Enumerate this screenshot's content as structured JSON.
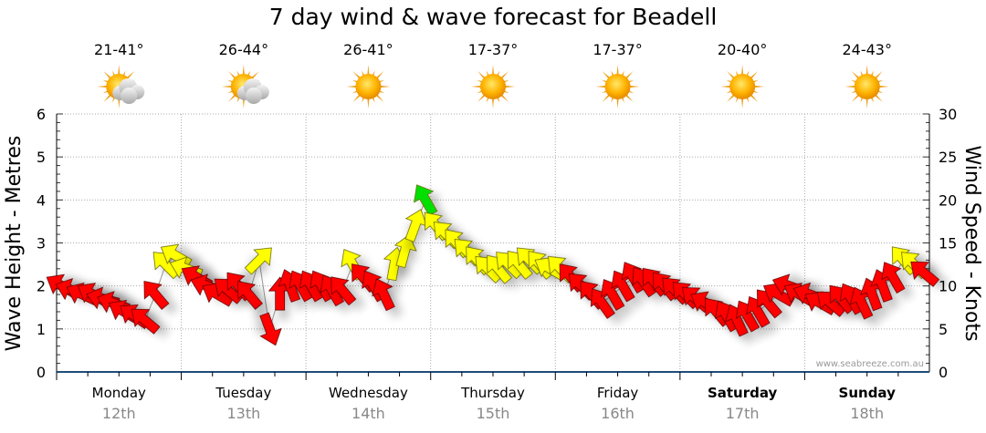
{
  "chart_data": {
    "type": "scatter",
    "title": "7 day wind & wave forecast for Beadell",
    "ylabel_left": "Wave Height - Metres",
    "ylabel_right": "Wind Speed - Knots",
    "ylim_left": [
      0,
      6
    ],
    "ylim_right": [
      0,
      30
    ],
    "yticks_left": [
      "0",
      "1",
      "2",
      "3",
      "4",
      "5",
      "6"
    ],
    "yticks_right": [
      "0",
      "5",
      "10",
      "15",
      "20",
      "25",
      "30"
    ],
    "grid": true,
    "watermark": "www.seabreeze.com.au",
    "days": [
      {
        "name": "Monday",
        "date": "12th",
        "bold": false,
        "temp": "21-41°",
        "icon": "partly-cloudy"
      },
      {
        "name": "Tuesday",
        "date": "13th",
        "bold": false,
        "temp": "26-44°",
        "icon": "partly-cloudy"
      },
      {
        "name": "Wednesday",
        "date": "14th",
        "bold": false,
        "temp": "26-41°",
        "icon": "sunny"
      },
      {
        "name": "Thursday",
        "date": "15th",
        "bold": false,
        "temp": "17-37°",
        "icon": "sunny"
      },
      {
        "name": "Friday",
        "date": "16th",
        "bold": false,
        "temp": "17-37°",
        "icon": "sunny"
      },
      {
        "name": "Saturday",
        "date": "17th",
        "bold": true,
        "temp": "20-40°",
        "icon": "sunny"
      },
      {
        "name": "Sunday",
        "date": "18th",
        "bold": true,
        "temp": "24-43°",
        "icon": "sunny"
      }
    ],
    "wind_interval_hours": 2,
    "wind_speed_knots": [
      10,
      9.5,
      9,
      9,
      8.5,
      8,
      7,
      6.5,
      6,
      9,
      12.5,
      13.5,
      12,
      11,
      10,
      9,
      9.5,
      10,
      9,
      13,
      5,
      9,
      10,
      10,
      10,
      10,
      9.5,
      9.5,
      12.5,
      11,
      10,
      9,
      12.5,
      14,
      17,
      20,
      17,
      16,
      15,
      14,
      13,
      12,
      12,
      12.5,
      12.5,
      13,
      12.5,
      12,
      12,
      11,
      10,
      9,
      8,
      9,
      10,
      11,
      10.5,
      10.5,
      10,
      9.5,
      9,
      8.5,
      8,
      7,
      6.5,
      6,
      6.5,
      7,
      8,
      9,
      10,
      9,
      9,
      8,
      8,
      8.5,
      8.5,
      8,
      9,
      10,
      11,
      13,
      12.5,
      11.5
    ],
    "wind_arrow_direction_deg": [
      300,
      290,
      295,
      300,
      285,
      290,
      300,
      305,
      310,
      320,
      315,
      300,
      290,
      300,
      290,
      300,
      310,
      320,
      320,
      45,
      160,
      0,
      340,
      330,
      330,
      330,
      330,
      320,
      330,
      320,
      330,
      335,
      10,
      15,
      20,
      330,
      320,
      315,
      320,
      315,
      320,
      315,
      320,
      315,
      320,
      315,
      320,
      300,
      315,
      320,
      315,
      320,
      325,
      330,
      330,
      330,
      325,
      320,
      320,
      315,
      315,
      310,
      300,
      320,
      330,
      335,
      330,
      330,
      320,
      300,
      290,
      300,
      290,
      300,
      310,
      320,
      330,
      335,
      340,
      340,
      330,
      320,
      315,
      310
    ],
    "color_scale": {
      "low": "#ff0000",
      "mid": "#ffff00",
      "high": "#00e000",
      "mid_from_knots": 12,
      "high_from_knots": 20
    }
  }
}
